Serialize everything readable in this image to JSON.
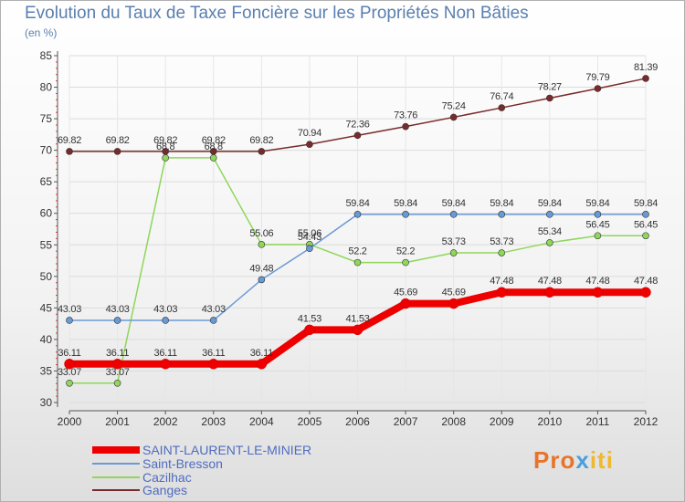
{
  "chart_data": {
    "type": "line",
    "title": "Evolution du Taux de Taxe Foncière sur les Propriétés Non Bâties",
    "subtitle": "(en %)",
    "x": [
      "2000",
      "2001",
      "2002",
      "2003",
      "2004",
      "2005",
      "2006",
      "2007",
      "2008",
      "2009",
      "2010",
      "2011",
      "2012"
    ],
    "yticks": [
      "30",
      "35",
      "40",
      "45",
      "50",
      "55",
      "60",
      "65",
      "70",
      "75",
      "80",
      "85"
    ],
    "ylim": [
      30,
      85
    ],
    "series": [
      {
        "name": "SAINT-LAURENT-LE-MINIER",
        "color": "#ee0000",
        "values": [
          36.11,
          36.11,
          36.11,
          36.11,
          36.11,
          41.53,
          41.53,
          45.69,
          45.69,
          47.48,
          47.48,
          47.48,
          47.48
        ],
        "labels": [
          "36.11",
          "36.11",
          "36.11",
          "36.11",
          "36.11",
          "41.53",
          "41.53",
          "45.69",
          "45.69",
          "47.48",
          "47.48",
          "47.48",
          "47.48"
        ]
      },
      {
        "name": "Saint-Bresson",
        "color": "#6a9ad4",
        "values": [
          43.03,
          43.03,
          43.03,
          43.03,
          49.48,
          54.43,
          59.84,
          59.84,
          59.84,
          59.84,
          59.84,
          59.84,
          59.84
        ],
        "labels": [
          "43.03",
          "43.03",
          "43.03",
          "43.03",
          "49.48",
          "54.43",
          "59.84",
          "59.84",
          "59.84",
          "59.84",
          "59.84",
          "59.84",
          "59.84"
        ]
      },
      {
        "name": "Cazilhac",
        "color": "#8fd65a",
        "values": [
          33.07,
          33.07,
          68.8,
          68.8,
          55.06,
          55.06,
          52.2,
          52.2,
          53.73,
          53.73,
          55.34,
          56.45,
          56.45
        ],
        "labels": [
          "33.07",
          "33.07",
          "68.8",
          "68.8",
          "55.06",
          "55.06",
          "52.2",
          "52.2",
          "53.73",
          "53.73",
          "55.34",
          "56.45",
          "56.45"
        ]
      },
      {
        "name": "Ganges",
        "color": "#7a2a2a",
        "values": [
          69.82,
          69.82,
          69.82,
          69.82,
          69.82,
          70.94,
          72.36,
          73.76,
          75.24,
          76.74,
          78.27,
          79.79,
          81.39
        ],
        "labels": [
          "69.82",
          "69.82",
          "69.82",
          "69.82",
          "69.82",
          "70.94",
          "72.36",
          "73.76",
          "75.24",
          "76.74",
          "78.27",
          "79.79",
          "81.39"
        ]
      }
    ]
  },
  "brand": {
    "p1": "Pro",
    "p2": "x",
    "p3": "iti"
  }
}
